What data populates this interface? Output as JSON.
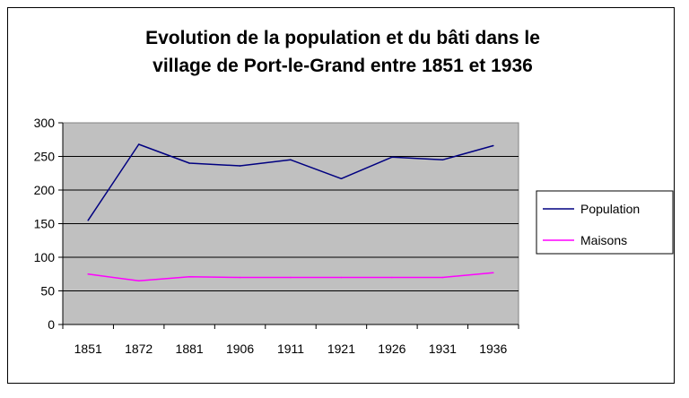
{
  "chart_data": {
    "type": "line",
    "title_lines": [
      "Evolution de la population et du bâti dans le",
      "village de Port-le-Grand entre 1851 et 1936"
    ],
    "categories": [
      "1851",
      "1872",
      "1881",
      "1906",
      "1911",
      "1921",
      "1926",
      "1931",
      "1936"
    ],
    "series": [
      {
        "name": "Population",
        "color": "#000080",
        "values": [
          155,
          268,
          240,
          236,
          245,
          217,
          249,
          245,
          266
        ]
      },
      {
        "name": "Maisons",
        "color": "#ff00ff",
        "values": [
          75,
          65,
          71,
          70,
          70,
          70,
          70,
          70,
          77
        ]
      }
    ],
    "y_ticks": [
      "0",
      "50",
      "100",
      "150",
      "200",
      "250",
      "300"
    ],
    "ylim": [
      0,
      300
    ],
    "grid": true,
    "plot_background": "#c0c0c0",
    "legend_position": "right"
  }
}
